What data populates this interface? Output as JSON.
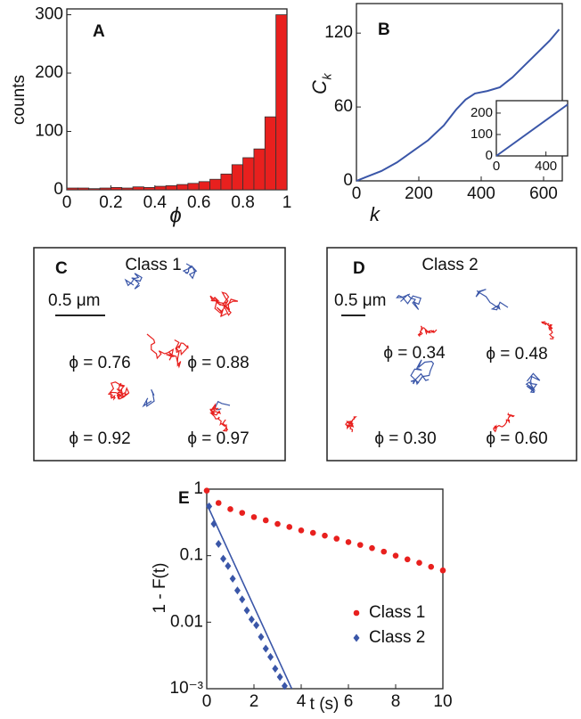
{
  "chart_data": [
    {
      "type": "histogram",
      "panel": "A",
      "xlabel": "ϕ",
      "ylabel": "counts",
      "bins": [
        0,
        0.05,
        0.1,
        0.15,
        0.2,
        0.25,
        0.3,
        0.35,
        0.4,
        0.45,
        0.5,
        0.55,
        0.6,
        0.65,
        0.7,
        0.75,
        0.8,
        0.85,
        0.9,
        0.95,
        1
      ],
      "counts": [
        3,
        3,
        2,
        3,
        4,
        3,
        5,
        4,
        6,
        7,
        9,
        11,
        14,
        18,
        27,
        43,
        55,
        70,
        125,
        300
      ],
      "color": "#e8201e",
      "xlim": [
        0,
        1
      ],
      "ylim": [
        0,
        310
      ],
      "xticks": [
        0,
        0.2,
        0.4,
        0.6,
        0.8,
        1
      ],
      "yticks": [
        0,
        100,
        200,
        300
      ]
    },
    {
      "type": "line",
      "panel": "B",
      "xlabel": "k",
      "ylabel": "C",
      "ylabel_sub": "k",
      "color": "#3a56a8",
      "x": [
        0,
        30,
        80,
        130,
        180,
        230,
        280,
        320,
        350,
        380,
        420,
        460,
        500,
        540,
        580,
        620,
        650
      ],
      "values": [
        0,
        3,
        8,
        15,
        24,
        33,
        45,
        58,
        66,
        71,
        73,
        76,
        84,
        94,
        104,
        114,
        123
      ],
      "xlim": [
        0,
        660
      ],
      "ylim": [
        0,
        144
      ],
      "xticks": [
        0,
        200,
        400,
        600
      ],
      "yticks": [
        0,
        60,
        120
      ],
      "inset": {
        "x": [
          0,
          575
        ],
        "values": [
          0,
          240
        ],
        "xlim": [
          0,
          575
        ],
        "ylim": [
          0,
          258
        ],
        "xticks": [
          0,
          400
        ],
        "yticks": [
          0,
          100,
          200
        ]
      }
    },
    {
      "type": "scatter",
      "panel": "E",
      "xlabel": "t (s)",
      "ylabel": "1 - F(t)",
      "log_y": true,
      "legend": "lower-right",
      "xlim": [
        0,
        10
      ],
      "ylim": [
        0.001,
        1
      ],
      "xticks": [
        0,
        2,
        4,
        6,
        8,
        10
      ],
      "yticks": [
        1,
        0.1,
        0.01,
        {
          "value": 0.001,
          "label": "10⁻³"
        }
      ],
      "series": [
        {
          "name": "Class 1",
          "color": "#e8201e",
          "marker": "circle",
          "x": [
            0,
            0.5,
            1,
            1.5,
            2,
            2.5,
            3,
            3.5,
            4,
            4.5,
            5,
            5.5,
            6,
            6.5,
            7,
            7.5,
            8,
            8.5,
            9,
            9.5,
            10
          ],
          "values": [
            0.95,
            0.62,
            0.5,
            0.44,
            0.38,
            0.34,
            0.3,
            0.27,
            0.24,
            0.22,
            0.2,
            0.18,
            0.16,
            0.145,
            0.13,
            0.115,
            0.1,
            0.088,
            0.078,
            0.068,
            0.06
          ]
        },
        {
          "name": "Class 2",
          "color": "#3a56a8",
          "marker": "diamond",
          "x": [
            0.1,
            0.3,
            0.5,
            0.7,
            0.9,
            1.1,
            1.3,
            1.5,
            1.7,
            1.9,
            2.1,
            2.3,
            2.5,
            2.7,
            2.9,
            3.1,
            3.3
          ],
          "values": [
            0.55,
            0.3,
            0.15,
            0.09,
            0.07,
            0.045,
            0.03,
            0.022,
            0.015,
            0.011,
            0.009,
            0.006,
            0.004,
            0.003,
            0.002,
            0.0015,
            0.0011
          ],
          "fit": {
            "x": [
              0,
              3.6
            ],
            "values": [
              0.6,
              0.001
            ]
          }
        }
      ]
    }
  ],
  "panels": [
    {
      "letter": "C",
      "title": "Class 1",
      "scale": "0.5 μm",
      "labels": [
        "ϕ = 0.76",
        "ϕ = 0.88",
        "ϕ = 0.92",
        "ϕ = 0.97"
      ]
    },
    {
      "letter": "D",
      "title": "Class 2",
      "scale": "0.5 μm",
      "labels": [
        "ϕ = 0.34",
        "ϕ = 0.48",
        "ϕ = 0.30",
        "ϕ = 0.60"
      ]
    }
  ]
}
